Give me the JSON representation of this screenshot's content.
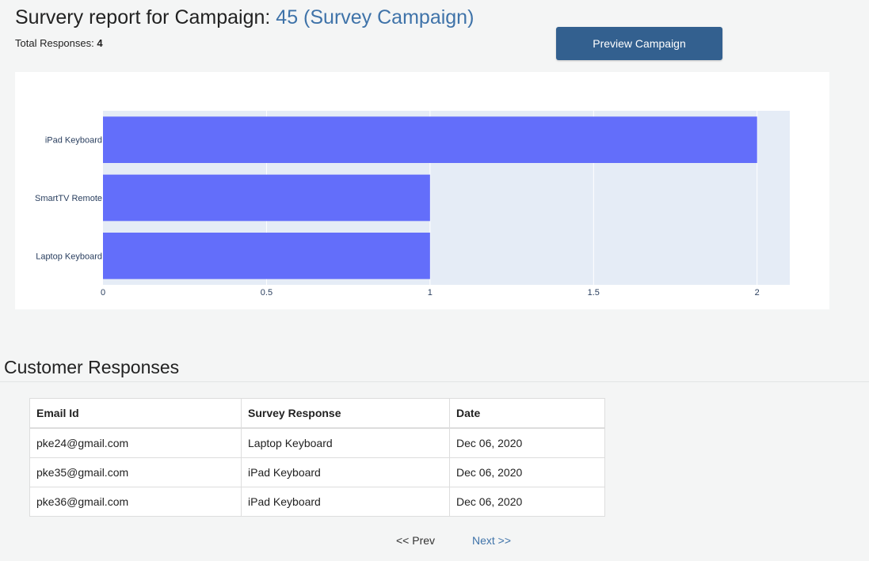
{
  "header": {
    "title_prefix": "Survery report for Campaign: ",
    "campaign_link": "45 (Survey Campaign)",
    "total_label": "Total Responses: ",
    "total_value": "4",
    "preview_button": "Preview Campaign"
  },
  "chart_data": {
    "type": "bar",
    "orientation": "horizontal",
    "categories": [
      "iPad Keyboard",
      "SmartTV Remote",
      "Laptop Keyboard"
    ],
    "values": [
      2,
      1,
      1
    ],
    "xlim": [
      0,
      2.1
    ],
    "xticks": [
      0,
      0.5,
      1,
      1.5,
      2
    ],
    "xtick_labels": [
      "0",
      "0.5",
      "1",
      "1.5",
      "2"
    ],
    "grid": true,
    "bar_color": "#636efa",
    "plot_background": "#e5ecf6"
  },
  "responses": {
    "title": "Customer Responses",
    "columns": [
      "Email Id",
      "Survey Response",
      "Date"
    ],
    "rows": [
      [
        "pke24@gmail.com",
        "Laptop Keyboard",
        "Dec 06, 2020"
      ],
      [
        "pke35@gmail.com",
        "iPad Keyboard",
        "Dec 06, 2020"
      ],
      [
        "pke36@gmail.com",
        "iPad Keyboard",
        "Dec 06, 2020"
      ]
    ]
  },
  "pagination": {
    "prev": "<< Prev",
    "next": "Next >>"
  }
}
